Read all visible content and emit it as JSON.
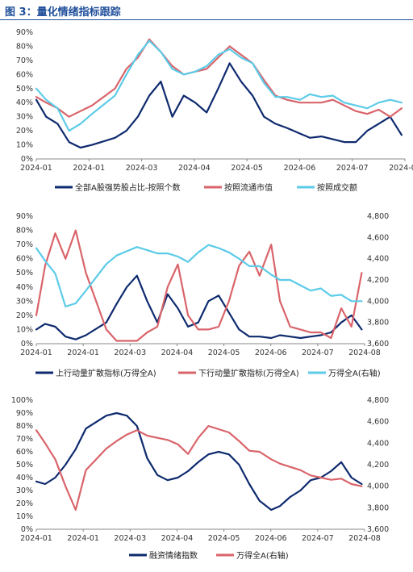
{
  "figure_title": "图 3：量化情绪指标跟踪",
  "chart_data": [
    {
      "type": "line",
      "x": [
        "2024-01-02",
        "2024-01-08",
        "2024-01-15",
        "2024-01-22",
        "2024-01-29",
        "2024-02-05",
        "2024-02-19",
        "2024-02-26",
        "2024-03-04",
        "2024-03-11",
        "2024-03-18",
        "2024-03-25",
        "2024-04-01",
        "2024-04-08",
        "2024-04-15",
        "2024-04-22",
        "2024-04-29",
        "2024-05-06",
        "2024-05-13",
        "2024-05-20",
        "2024-05-27",
        "2024-06-03",
        "2024-06-11",
        "2024-06-17",
        "2024-06-24",
        "2024-07-01",
        "2024-07-08",
        "2024-07-15",
        "2024-07-22",
        "2024-07-29",
        "2024-08-05",
        "2024-08-12"
      ],
      "x_ticks": [
        "2024-01",
        "2024-01",
        "2024-03",
        "2024-04",
        "2024-05",
        "2024-06",
        "2024-07",
        "2024-08"
      ],
      "ylim": [
        0,
        90
      ],
      "y_ticks": [
        "0%",
        "10%",
        "20%",
        "30%",
        "40%",
        "50%",
        "60%",
        "70%",
        "80%",
        "90%"
      ],
      "series": [
        {
          "name": "全部A股强势股占比-按照个数",
          "color": "#0e2a6e",
          "values": [
            42,
            30,
            25,
            12,
            8,
            10,
            15,
            20,
            30,
            45,
            55,
            30,
            45,
            40,
            33,
            50,
            68,
            55,
            45,
            30,
            25,
            22,
            18,
            15,
            16,
            14,
            12,
            12,
            20,
            25,
            30,
            17
          ]
        },
        {
          "name": "按照流通市值",
          "color": "#d9646a",
          "values": [
            44,
            40,
            36,
            30,
            34,
            38,
            50,
            64,
            72,
            85,
            76,
            66,
            60,
            62,
            64,
            72,
            80,
            74,
            68,
            56,
            45,
            42,
            40,
            40,
            40,
            42,
            38,
            34,
            32,
            35,
            30,
            36
          ]
        },
        {
          "name": "按照成交额",
          "color": "#5ccbe8",
          "values": [
            50,
            42,
            36,
            20,
            25,
            32,
            45,
            60,
            74,
            84,
            76,
            64,
            60,
            62,
            66,
            74,
            78,
            72,
            68,
            54,
            44,
            44,
            42,
            46,
            44,
            45,
            40,
            38,
            36,
            40,
            42,
            40
          ]
        }
      ]
    },
    {
      "type": "line",
      "x": [
        "2024-01-02",
        "2024-01-08",
        "2024-01-15",
        "2024-01-22",
        "2024-01-29",
        "2024-02-05",
        "2024-02-19",
        "2024-02-26",
        "2024-03-04",
        "2024-03-11",
        "2024-03-18",
        "2024-03-25",
        "2024-04-01",
        "2024-04-08",
        "2024-04-15",
        "2024-04-22",
        "2024-04-29",
        "2024-05-06",
        "2024-05-13",
        "2024-05-20",
        "2024-05-27",
        "2024-06-03",
        "2024-06-11",
        "2024-06-17",
        "2024-06-24",
        "2024-07-01",
        "2024-07-08",
        "2024-07-15",
        "2024-07-22",
        "2024-07-29",
        "2024-08-05",
        "2024-08-12"
      ],
      "x_ticks": [
        "2024-01",
        "2024-01",
        "2024-03",
        "2024-04",
        "2024-05",
        "2024-06",
        "2024-07",
        "2024-08"
      ],
      "ylim": [
        0,
        90
      ],
      "y_ticks": [
        "0%",
        "10%",
        "20%",
        "30%",
        "40%",
        "50%",
        "60%",
        "70%",
        "80%",
        "90%"
      ],
      "y2lim": [
        3600,
        4800
      ],
      "y2_ticks": [
        "3,600",
        "3,800",
        "4,000",
        "4,200",
        "4,400",
        "4,600",
        "4,800"
      ],
      "series": [
        {
          "name": "上行动量扩散指标(万得全A)",
          "color": "#0e2a6e",
          "axis": "left",
          "values": [
            10,
            14,
            12,
            5,
            3,
            6,
            15,
            28,
            40,
            48,
            30,
            15,
            35,
            25,
            12,
            15,
            30,
            34,
            22,
            10,
            5,
            5,
            4,
            6,
            5,
            4,
            5,
            6,
            8,
            15,
            20,
            10
          ]
        },
        {
          "name": "下行动量扩散指标(万得全A)",
          "color": "#d9646a",
          "axis": "left",
          "values": [
            20,
            55,
            78,
            60,
            80,
            50,
            10,
            2,
            2,
            2,
            8,
            12,
            40,
            56,
            20,
            10,
            10,
            12,
            30,
            55,
            65,
            48,
            70,
            30,
            12,
            10,
            8,
            8,
            4,
            25,
            12,
            50
          ]
        },
        {
          "name": "万得全A(右轴)",
          "color": "#5ccbe8",
          "axis": "right",
          "values": [
            4500,
            4380,
            4260,
            3950,
            3980,
            4100,
            4350,
            4430,
            4470,
            4510,
            4480,
            4450,
            4450,
            4420,
            4370,
            4460,
            4530,
            4500,
            4460,
            4400,
            4330,
            4330,
            4250,
            4200,
            4200,
            4150,
            4100,
            4120,
            4050,
            4060,
            4000,
            4000
          ]
        }
      ]
    },
    {
      "type": "line",
      "x": [
        "2024-01-02",
        "2024-01-08",
        "2024-01-15",
        "2024-01-22",
        "2024-01-29",
        "2024-02-05",
        "2024-02-19",
        "2024-02-26",
        "2024-03-04",
        "2024-03-11",
        "2024-03-18",
        "2024-03-25",
        "2024-04-01",
        "2024-04-08",
        "2024-04-15",
        "2024-04-22",
        "2024-04-29",
        "2024-05-06",
        "2024-05-13",
        "2024-05-20",
        "2024-05-27",
        "2024-06-03",
        "2024-06-11",
        "2024-06-17",
        "2024-06-24",
        "2024-07-01",
        "2024-07-08",
        "2024-07-15",
        "2024-07-22",
        "2024-07-29",
        "2024-08-05",
        "2024-08-12"
      ],
      "x_ticks": [
        "2024-01",
        "2024-01",
        "2024-03",
        "2024-04",
        "2024-05",
        "2024-06",
        "2024-07",
        "2024-08"
      ],
      "ylim": [
        0,
        100
      ],
      "y_ticks": [
        "0%",
        "10%",
        "20%",
        "30%",
        "40%",
        "50%",
        "60%",
        "70%",
        "80%",
        "90%",
        "100%"
      ],
      "y2lim": [
        3600,
        4800
      ],
      "y2_ticks": [
        "3,600",
        "3,800",
        "4,000",
        "4,200",
        "4,400",
        "4,600",
        "4,800"
      ],
      "series": [
        {
          "name": "融资情绪指数",
          "color": "#0e2a6e",
          "axis": "left",
          "values": [
            37,
            35,
            40,
            50,
            62,
            78,
            88,
            90,
            88,
            80,
            55,
            42,
            38,
            40,
            45,
            52,
            58,
            60,
            58,
            50,
            35,
            22,
            15,
            18,
            25,
            30,
            38,
            40,
            45,
            52,
            40,
            35
          ]
        },
        {
          "name": "万得全A(右轴)",
          "color": "#d9646a",
          "axis": "right",
          "values": [
            4520,
            4400,
            4250,
            4000,
            3780,
            4150,
            4350,
            4420,
            4480,
            4520,
            4470,
            4450,
            4430,
            4390,
            4300,
            4450,
            4560,
            4530,
            4500,
            4420,
            4330,
            4320,
            4250,
            4210,
            4180,
            4150,
            4100,
            4080,
            4060,
            4070,
            4020,
            4000
          ]
        }
      ]
    }
  ]
}
